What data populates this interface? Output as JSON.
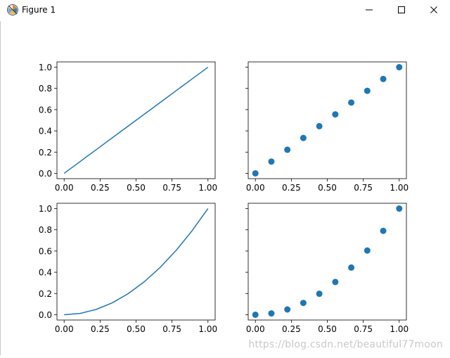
{
  "window": {
    "title": "Figure 1",
    "icons": {
      "app": "matplotlib-logo-icon",
      "minimize": "minimize-icon",
      "maximize": "maximize-icon",
      "close": "close-icon"
    }
  },
  "watermark": "https://blog.csdn.net/beautiful77moon",
  "colors": {
    "series": "#1f77b4",
    "axes": "#000000",
    "background": "#ffffff"
  },
  "chart_data": [
    {
      "type": "line",
      "xlim": [
        -0.05,
        1.05
      ],
      "ylim": [
        -0.05,
        1.05
      ],
      "grid": false,
      "xticks": [
        "0.00",
        "0.25",
        "0.50",
        "0.75",
        "1.00"
      ],
      "yticks": [
        "0.0",
        "0.2",
        "0.4",
        "0.6",
        "0.8",
        "1.0"
      ],
      "x": [
        0,
        0.1111,
        0.2222,
        0.3333,
        0.4444,
        0.5556,
        0.6667,
        0.7778,
        0.8889,
        1.0
      ],
      "y": [
        0,
        0.1111,
        0.2222,
        0.3333,
        0.4444,
        0.5556,
        0.6667,
        0.7778,
        0.8889,
        1.0
      ]
    },
    {
      "type": "scatter",
      "xlim": [
        -0.05,
        1.05
      ],
      "ylim": [
        -0.05,
        1.05
      ],
      "grid": false,
      "shared_y": true,
      "xticks": [
        "0.00",
        "0.25",
        "0.50",
        "0.75",
        "1.00"
      ],
      "yticks": [],
      "x": [
        0,
        0.1111,
        0.2222,
        0.3333,
        0.4444,
        0.5556,
        0.6667,
        0.7778,
        0.8889,
        1.0
      ],
      "y": [
        0,
        0.1111,
        0.2222,
        0.3333,
        0.4444,
        0.5556,
        0.6667,
        0.7778,
        0.8889,
        1.0
      ]
    },
    {
      "type": "line",
      "xlim": [
        -0.05,
        1.05
      ],
      "ylim": [
        -0.05,
        1.05
      ],
      "grid": false,
      "xticks": [
        "0.00",
        "0.25",
        "0.50",
        "0.75",
        "1.00"
      ],
      "yticks": [
        "0.0",
        "0.2",
        "0.4",
        "0.6",
        "0.8",
        "1.0"
      ],
      "x": [
        0,
        0.1111,
        0.2222,
        0.3333,
        0.4444,
        0.5556,
        0.6667,
        0.7778,
        0.8889,
        1.0
      ],
      "y": [
        0,
        0.0123,
        0.0494,
        0.1111,
        0.1975,
        0.3086,
        0.4444,
        0.6049,
        0.7901,
        1.0
      ]
    },
    {
      "type": "scatter",
      "xlim": [
        -0.05,
        1.05
      ],
      "ylim": [
        -0.05,
        1.05
      ],
      "grid": false,
      "shared_y": true,
      "xticks": [
        "0.00",
        "0.25",
        "0.50",
        "0.75",
        "1.00"
      ],
      "yticks": [],
      "x": [
        0,
        0.1111,
        0.2222,
        0.3333,
        0.4444,
        0.5556,
        0.6667,
        0.7778,
        0.8889,
        1.0
      ],
      "y": [
        0,
        0.0123,
        0.0494,
        0.1111,
        0.1975,
        0.3086,
        0.4444,
        0.6049,
        0.7901,
        1.0
      ]
    }
  ]
}
